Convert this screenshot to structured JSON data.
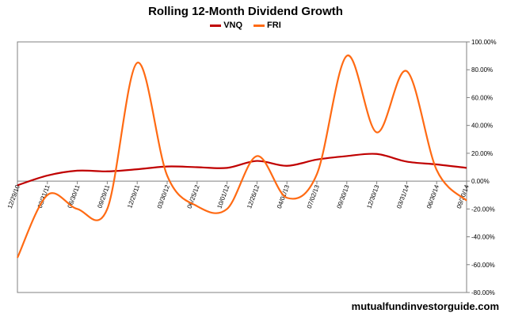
{
  "chart_data": {
    "type": "line",
    "title": "Rolling 12-Month Dividend Growth",
    "x": [
      "12/29/10",
      "03/31/11",
      "06/30/11",
      "09/29/11",
      "12/29/11",
      "03/30/12",
      "06/25/12",
      "10/01/12",
      "12/26/12",
      "04/01/13",
      "07/02/13",
      "09/30/13",
      "12/30/13",
      "03/31/14",
      "06/30/14",
      "09/30/14"
    ],
    "series": [
      {
        "name": "VNQ",
        "color": "#c00000",
        "values": [
          -3,
          4,
          7.5,
          7,
          8.5,
          10.5,
          10,
          9.5,
          14.5,
          11,
          15.5,
          18,
          19.5,
          14,
          12,
          9.5
        ]
      },
      {
        "name": "FRI",
        "color": "#ff6a13",
        "values": [
          -55,
          -10,
          -20,
          -20,
          85,
          4,
          -18,
          -20,
          18,
          -12,
          5,
          90,
          35,
          79,
          8,
          -14
        ]
      }
    ],
    "ylim": [
      -80,
      100
    ],
    "yticks": [
      "100.00%",
      "80.00%",
      "60.00%",
      "40.00%",
      "20.00%",
      "0.00%",
      "-20.00%",
      "-40.00%",
      "-60.00%",
      "-80.00%"
    ],
    "ylabel_position": "right",
    "legend_position": "top",
    "grid": false
  },
  "footer": {
    "source": "mutualfundinvestorguide.com"
  }
}
